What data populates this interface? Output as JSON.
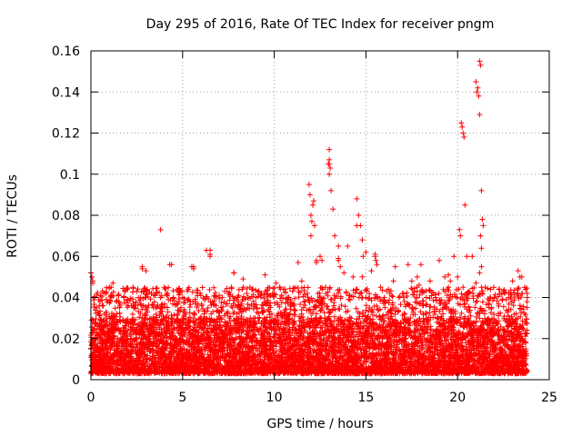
{
  "chart_data": {
    "type": "scatter",
    "title": "Day 295 of 2016, Rate Of TEC Index for receiver pngm",
    "xlabel": "GPS time / hours",
    "ylabel": "ROTI / TECUs",
    "xlim": [
      0,
      25
    ],
    "ylim": [
      0,
      0.16
    ],
    "x_ticks": [
      0,
      5,
      10,
      15,
      20,
      25
    ],
    "x_tick_labels": [
      "0",
      "5",
      "10",
      "15",
      "20",
      "25"
    ],
    "y_ticks": [
      0,
      0.02,
      0.04,
      0.06,
      0.08,
      0.1,
      0.12,
      0.14,
      0.16
    ],
    "y_tick_labels": [
      "0",
      "0.02",
      "0.04",
      "0.06",
      "0.08",
      "0.1",
      "0.12",
      "0.14",
      "0.16"
    ],
    "grid": true,
    "marker": "+",
    "series": [
      {
        "name": "ROTI",
        "color": "#ff0000",
        "x": [
          0.0,
          0.1,
          0.2,
          0.3,
          0.5,
          0.8,
          1.0,
          1.2,
          1.5,
          1.8,
          2.0,
          2.3,
          2.5,
          2.8,
          3.0,
          3.3,
          3.5,
          3.8,
          4.0,
          4.3,
          4.5,
          4.8,
          5.0,
          5.3,
          5.5,
          5.8,
          6.0,
          6.3,
          6.5,
          6.8,
          7.0,
          7.3,
          7.5,
          7.8,
          8.0,
          8.3,
          8.5,
          8.8,
          9.0,
          9.3,
          9.5,
          9.8,
          10.0,
          10.3,
          10.5,
          10.8,
          11.0,
          11.3,
          11.5,
          11.8,
          12.0,
          12.3,
          12.5,
          12.8,
          13.0,
          13.3,
          13.5,
          13.8,
          14.0,
          14.3,
          14.5,
          14.8,
          15.0,
          15.3,
          15.5,
          15.8,
          16.0,
          16.3,
          16.5,
          16.8,
          17.0,
          17.3,
          17.5,
          17.8,
          18.0,
          18.3,
          18.5,
          18.8,
          19.0,
          19.3,
          19.5,
          19.8,
          20.0,
          20.3,
          20.5,
          20.8,
          21.0,
          21.3,
          21.5,
          21.8,
          22.0,
          22.3,
          22.5,
          22.8,
          23.0,
          23.3,
          23.5,
          23.8,
          0.0,
          0.05,
          0.1,
          2.8,
          3.8,
          4.4,
          5.6,
          5.6,
          6.5,
          6.5,
          7.8,
          11.9,
          11.95,
          12.0,
          12.05,
          12.1,
          12.15,
          12.2,
          12.3,
          12.5,
          12.6,
          12.95,
          13.0,
          13.0,
          13.05,
          13.0,
          13.1,
          13.2,
          13.5,
          13.5,
          13.6,
          14.5,
          14.6,
          14.7,
          14.8,
          14.85,
          15.0,
          15.5,
          15.55,
          15.6,
          20.1,
          20.15,
          20.2,
          20.25,
          20.3,
          20.35,
          20.4,
          20.5,
          21.0,
          21.05,
          21.1,
          21.15,
          21.2,
          21.25,
          21.2,
          21.3,
          21.35,
          21.4,
          21.3,
          21.25,
          21.2,
          21.3,
          23.3,
          23.4,
          19.5,
          19.6,
          17.8,
          17.9,
          16.6,
          10.1,
          10.3,
          9.5,
          8.3,
          3.0,
          1.1
        ],
        "y": [
          0.052,
          0.048,
          0.04,
          0.035,
          0.038,
          0.042,
          0.045,
          0.047,
          0.041,
          0.04,
          0.039,
          0.045,
          0.043,
          0.055,
          0.04,
          0.042,
          0.041,
          0.04,
          0.045,
          0.056,
          0.04,
          0.043,
          0.04,
          0.044,
          0.055,
          0.042,
          0.041,
          0.063,
          0.061,
          0.041,
          0.041,
          0.043,
          0.042,
          0.052,
          0.04,
          0.045,
          0.042,
          0.044,
          0.04,
          0.042,
          0.043,
          0.041,
          0.042,
          0.045,
          0.044,
          0.04,
          0.043,
          0.057,
          0.048,
          0.042,
          0.07,
          0.058,
          0.04,
          0.045,
          0.105,
          0.07,
          0.059,
          0.052,
          0.065,
          0.05,
          0.075,
          0.05,
          0.04,
          0.053,
          0.06,
          0.045,
          0.04,
          0.042,
          0.048,
          0.04,
          0.042,
          0.056,
          0.048,
          0.043,
          0.056,
          0.04,
          0.048,
          0.04,
          0.058,
          0.05,
          0.045,
          0.06,
          0.05,
          0.045,
          0.042,
          0.06,
          0.047,
          0.055,
          0.045,
          0.044,
          0.04,
          0.042,
          0.043,
          0.04,
          0.048,
          0.041,
          0.05,
          0.04,
          0.052,
          0.05,
          0.047,
          0.054,
          0.073,
          0.056,
          0.055,
          0.054,
          0.063,
          0.06,
          0.052,
          0.095,
          0.09,
          0.08,
          0.077,
          0.085,
          0.087,
          0.075,
          0.057,
          0.06,
          0.058,
          0.105,
          0.112,
          0.107,
          0.103,
          0.1,
          0.092,
          0.083,
          0.065,
          0.058,
          0.055,
          0.088,
          0.08,
          0.075,
          0.068,
          0.06,
          0.062,
          0.061,
          0.058,
          0.056,
          0.073,
          0.07,
          0.125,
          0.123,
          0.12,
          0.118,
          0.085,
          0.06,
          0.145,
          0.14,
          0.142,
          0.138,
          0.155,
          0.153,
          0.129,
          0.092,
          0.078,
          0.075,
          0.064,
          0.07,
          0.052,
          0.045,
          0.053,
          0.05,
          0.051,
          0.048,
          0.05,
          0.046,
          0.055,
          0.047,
          0.045,
          0.051,
          0.049,
          0.053,
          0.045
        ]
      }
    ],
    "dense_band": {
      "description_values_only": true,
      "x_range": [
        0,
        23.8
      ],
      "y_min": 0.003,
      "y_max": 0.03,
      "count": 7000
    }
  }
}
